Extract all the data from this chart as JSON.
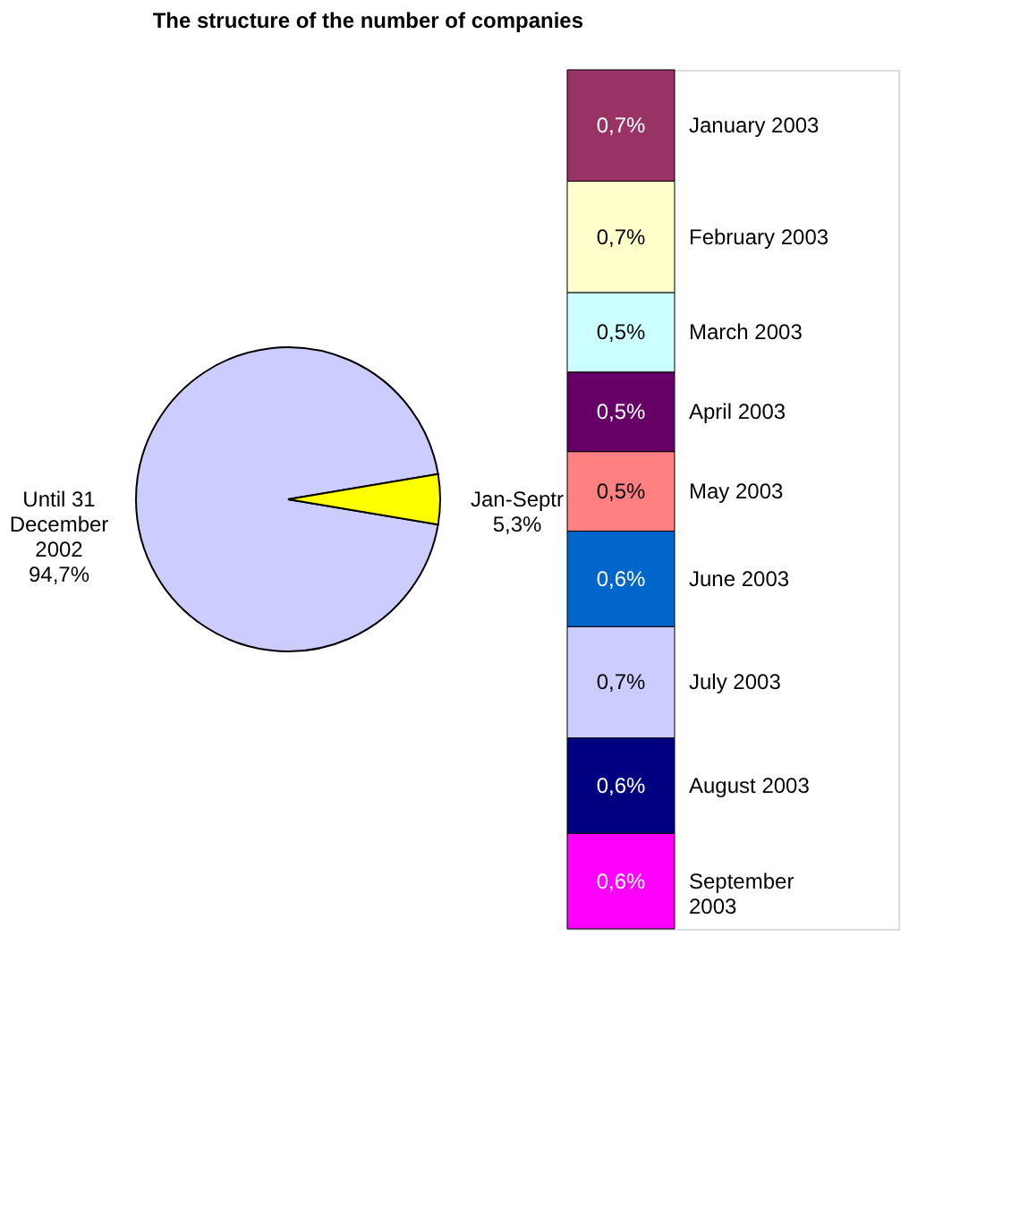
{
  "chart_data": [
    {
      "type": "pie",
      "title": "The structure of the number of companies",
      "categories": [
        "Until 31 December 2002",
        "Jan-Septr"
      ],
      "values": [
        94.7,
        5.3
      ],
      "colors": [
        "#ccccff",
        "#ffff00"
      ],
      "value_labels": [
        "94,7%",
        "5,3%"
      ]
    },
    {
      "type": "bar",
      "stacked": true,
      "categories": [
        null
      ],
      "series": [
        {
          "name": "September 2003",
          "color": "#ff00ff",
          "values": [
            0.6
          ],
          "value_labels": [
            "0,6%"
          ]
        },
        {
          "name": "August 2003",
          "color": "#000080",
          "values": [
            0.6
          ],
          "value_labels": [
            "0,6%"
          ]
        },
        {
          "name": "July 2003",
          "color": "#ccccff",
          "values": [
            0.7
          ],
          "value_labels": [
            "0,7%"
          ]
        },
        {
          "name": "June 2003",
          "color": "#0066cc",
          "values": [
            0.6
          ],
          "value_labels": [
            "0,6%"
          ]
        },
        {
          "name": "May 2003",
          "color": "#ff8080",
          "values": [
            0.5
          ],
          "value_labels": [
            "0,5%"
          ]
        },
        {
          "name": "April 2003",
          "color": "#660066",
          "values": [
            0.5
          ],
          "value_labels": [
            "0,5%"
          ]
        },
        {
          "name": "March 2003",
          "color": "#ccffff",
          "values": [
            0.5
          ],
          "value_labels": [
            "0,5%"
          ]
        },
        {
          "name": "February 2003",
          "color": "#ffffcc",
          "values": [
            0.7
          ],
          "value_labels": [
            "0,7%"
          ]
        },
        {
          "name": "January 2003",
          "color": "#993366",
          "values": [
            0.7
          ],
          "value_labels": [
            "0,7%"
          ]
        }
      ]
    }
  ]
}
